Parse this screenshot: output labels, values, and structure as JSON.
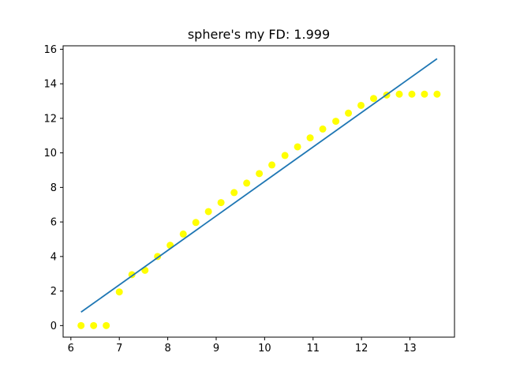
{
  "chart_data": {
    "type": "scatter",
    "title": "sphere's my FD: 1.999",
    "xlabel": "",
    "ylabel": "",
    "xlim": [
      5.84,
      13.92
    ],
    "ylim": [
      -0.67,
      16.2
    ],
    "xticks": [
      6,
      7,
      8,
      9,
      10,
      11,
      12,
      13
    ],
    "yticks": [
      0,
      2,
      4,
      6,
      8,
      10,
      12,
      14,
      16
    ],
    "grid": false,
    "legend": "none",
    "series": [
      {
        "kind": "scatter",
        "color": "#ffff00",
        "points": [
          [
            6.21,
            0.0
          ],
          [
            6.47,
            0.0
          ],
          [
            6.73,
            0.0
          ],
          [
            7.0,
            1.95
          ],
          [
            7.26,
            2.95
          ],
          [
            7.53,
            3.2
          ],
          [
            7.79,
            4.0
          ],
          [
            8.05,
            4.65
          ],
          [
            8.32,
            5.3
          ],
          [
            8.58,
            5.97
          ],
          [
            8.84,
            6.6
          ],
          [
            9.1,
            7.12
          ],
          [
            9.37,
            7.7
          ],
          [
            9.63,
            8.25
          ],
          [
            9.89,
            8.8
          ],
          [
            10.15,
            9.3
          ],
          [
            10.42,
            9.85
          ],
          [
            10.68,
            10.35
          ],
          [
            10.94,
            10.87
          ],
          [
            11.2,
            11.38
          ],
          [
            11.47,
            11.83
          ],
          [
            11.73,
            12.3
          ],
          [
            11.99,
            12.75
          ],
          [
            12.25,
            13.15
          ],
          [
            12.52,
            13.35
          ],
          [
            12.78,
            13.4
          ],
          [
            13.04,
            13.4
          ],
          [
            13.3,
            13.4
          ],
          [
            13.56,
            13.4
          ]
        ]
      },
      {
        "kind": "line",
        "color": "#1f77b4",
        "points": [
          [
            6.21,
            0.78
          ],
          [
            13.56,
            15.45
          ]
        ]
      }
    ]
  }
}
